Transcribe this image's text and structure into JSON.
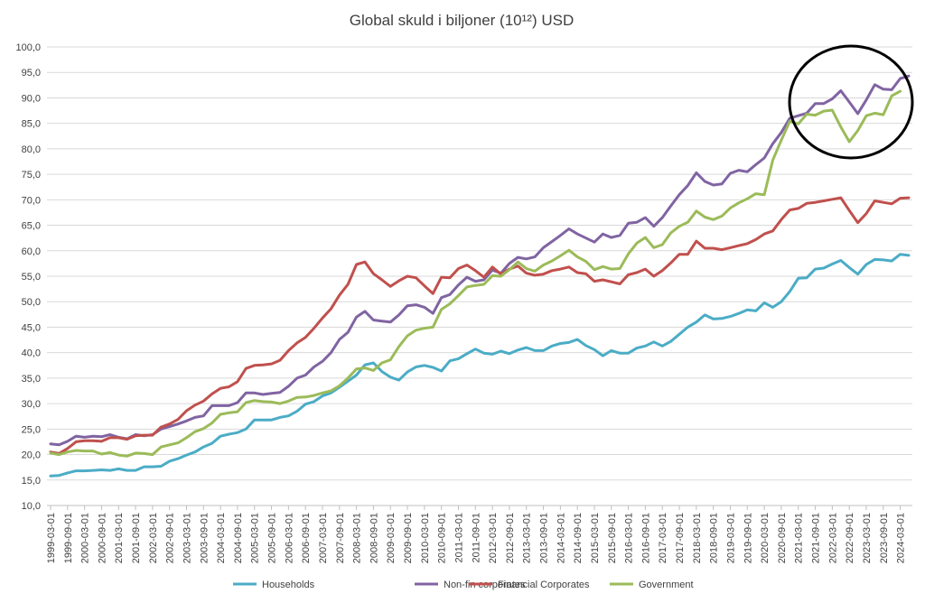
{
  "chart_data": {
    "type": "line",
    "title": "Global skuld i biljoner (10¹²) USD",
    "xlabel": "",
    "ylabel": "",
    "ylim": [
      10,
      100
    ],
    "y_ticks": [
      "10,0",
      "15,0",
      "20,0",
      "25,0",
      "30,0",
      "35,0",
      "40,0",
      "45,0",
      "50,0",
      "55,0",
      "60,0",
      "65,0",
      "70,0",
      "75,0",
      "80,0",
      "85,0",
      "90,0",
      "95,0",
      "100,0"
    ],
    "grid": true,
    "legend": "bottom",
    "x_start": "1999-03",
    "x_step_months": 3,
    "x_tick_labels": [
      "1999-03-01",
      "1999-09-01",
      "2000-03-01",
      "2000-09-01",
      "2001-03-01",
      "2001-09-01",
      "2002-03-01",
      "2002-09-01",
      "2003-03-01",
      "2003-09-01",
      "2004-03-01",
      "2004-09-01",
      "2005-03-01",
      "2005-09-01",
      "2006-03-01",
      "2006-09-01",
      "2007-03-01",
      "2007-09-01",
      "2008-03-01",
      "2008-09-01",
      "2009-03-01",
      "2009-09-01",
      "2010-03-01",
      "2010-09-01",
      "2011-03-01",
      "2011-09-01",
      "2012-03-01",
      "2012-09-01",
      "2013-03-01",
      "2013-09-01",
      "2014-03-01",
      "2014-09-01",
      "2015-03-01",
      "2015-09-01",
      "2016-03-01",
      "2016-09-01",
      "2017-03-01",
      "2017-09-01",
      "2018-03-01",
      "2018-09-01",
      "2019-03-01",
      "2019-09-01",
      "2020-03-01",
      "2020-09-01",
      "2021-03-01",
      "2021-09-01",
      "2022-03-01",
      "2022-09-01",
      "2023-03-01",
      "2023-09-01",
      "2024-03-01"
    ],
    "series": [
      {
        "name": "Households",
        "color": "#4bacc6",
        "values": [
          15.8,
          15.9,
          16.4,
          16.8,
          16.8,
          16.9,
          17.0,
          16.9,
          17.2,
          16.9,
          16.9,
          17.6,
          17.6,
          17.7,
          18.7,
          19.2,
          19.9,
          20.5,
          21.5,
          22.2,
          23.6,
          24.0,
          24.3,
          25.0,
          26.8,
          26.8,
          26.8,
          27.3,
          27.6,
          28.5,
          29.9,
          30.4,
          31.5,
          32.1,
          33.2,
          34.4,
          35.6,
          37.6,
          38.0,
          36.3,
          35.2,
          34.6,
          36.2,
          37.2,
          37.5,
          37.1,
          36.4,
          38.4,
          38.8,
          39.8,
          40.7,
          39.9,
          39.7,
          40.3,
          39.8,
          40.5,
          41.0,
          40.4,
          40.4,
          41.3,
          41.8,
          42.0,
          42.6,
          41.4,
          40.6,
          39.4,
          40.4,
          39.9,
          39.9,
          40.9,
          41.3,
          42.1,
          41.3,
          42.2,
          43.6,
          45.0,
          46.0,
          47.4,
          46.6,
          46.7,
          47.1,
          47.7,
          48.4,
          48.2,
          49.8,
          48.9,
          50.0,
          52.0,
          54.6,
          54.7,
          56.4,
          56.6,
          57.4,
          58.1,
          56.7,
          55.4,
          57.3,
          58.3,
          58.2,
          58.0,
          59.3,
          59.1
        ]
      },
      {
        "name": "Non-fin corporates",
        "color": "#8064a2",
        "values": [
          22.1,
          21.9,
          22.6,
          23.6,
          23.4,
          23.6,
          23.5,
          23.9,
          23.4,
          23.1,
          23.9,
          23.7,
          23.9,
          25.0,
          25.5,
          26.0,
          26.6,
          27.3,
          27.6,
          29.6,
          29.6,
          29.6,
          30.2,
          32.1,
          32.1,
          31.8,
          32.0,
          32.2,
          33.4,
          35.0,
          35.6,
          37.2,
          38.3,
          40.0,
          42.6,
          44.0,
          47.0,
          48.1,
          46.4,
          46.2,
          46.0,
          47.4,
          49.2,
          49.4,
          48.9,
          47.7,
          50.8,
          51.4,
          53.3,
          54.8,
          54.0,
          54.3,
          56.2,
          55.6,
          57.5,
          58.7,
          58.4,
          58.8,
          60.6,
          61.8,
          63.0,
          64.3,
          63.3,
          62.5,
          61.7,
          63.3,
          62.6,
          63.0,
          65.4,
          65.6,
          66.5,
          64.8,
          66.5,
          68.8,
          71.0,
          72.8,
          75.3,
          73.6,
          72.9,
          73.1,
          75.2,
          75.8,
          75.5,
          76.9,
          78.2,
          81.0,
          83.2,
          86.0,
          86.5,
          87.0,
          88.9,
          88.9,
          89.8,
          91.4,
          89.2,
          86.9,
          89.6,
          92.6,
          91.7,
          91.6,
          93.8,
          94.3
        ]
      },
      {
        "name": "Financial Corporates",
        "color": "#c0504d",
        "values": [
          20.5,
          20.2,
          21.2,
          22.5,
          22.7,
          22.7,
          22.6,
          23.3,
          23.3,
          23.0,
          23.7,
          23.8,
          23.8,
          25.4,
          26.0,
          26.9,
          28.6,
          29.7,
          30.5,
          31.9,
          33.0,
          33.3,
          34.3,
          36.9,
          37.5,
          37.6,
          37.8,
          38.5,
          40.4,
          41.9,
          43.0,
          44.8,
          46.8,
          48.6,
          51.3,
          53.4,
          57.3,
          57.8,
          55.5,
          54.3,
          53.0,
          54.1,
          55.0,
          54.7,
          53.1,
          51.6,
          54.8,
          54.7,
          56.5,
          57.2,
          56.1,
          54.8,
          56.8,
          55.4,
          56.4,
          57.0,
          55.6,
          55.2,
          55.4,
          56.1,
          56.4,
          56.8,
          55.7,
          55.5,
          54.0,
          54.3,
          53.9,
          53.5,
          55.3,
          55.7,
          56.4,
          55.0,
          56.1,
          57.6,
          59.3,
          59.3,
          61.9,
          60.5,
          60.5,
          60.2,
          60.6,
          61.0,
          61.4,
          62.2,
          63.3,
          63.9,
          66.1,
          68.0,
          68.3,
          69.3,
          69.5,
          69.8,
          70.1,
          70.4,
          67.9,
          65.5,
          67.3,
          69.8,
          69.5,
          69.2,
          70.3,
          70.4
        ]
      },
      {
        "name": "Government",
        "color": "#9bbb59",
        "values": [
          20.3,
          20.0,
          20.5,
          20.8,
          20.7,
          20.7,
          20.1,
          20.4,
          19.9,
          19.7,
          20.3,
          20.2,
          20.0,
          21.5,
          21.9,
          22.3,
          23.3,
          24.5,
          25.1,
          26.2,
          27.9,
          28.2,
          28.4,
          30.2,
          30.6,
          30.4,
          30.3,
          30.0,
          30.5,
          31.2,
          31.3,
          31.6,
          32.1,
          32.5,
          33.5,
          35.0,
          36.8,
          37.0,
          36.5,
          38.0,
          38.6,
          41.2,
          43.3,
          44.4,
          44.8,
          45.0,
          48.5,
          49.6,
          51.2,
          52.9,
          53.2,
          53.4,
          55.1,
          55.0,
          56.3,
          57.8,
          56.5,
          56.0,
          57.2,
          58.0,
          59.0,
          60.1,
          58.8,
          57.9,
          56.3,
          56.9,
          56.4,
          56.5,
          59.4,
          61.5,
          62.6,
          60.6,
          61.2,
          63.5,
          64.8,
          65.6,
          67.8,
          66.6,
          66.1,
          66.8,
          68.4,
          69.4,
          70.2,
          71.2,
          71.0,
          77.8,
          81.7,
          85.4,
          84.9,
          86.8,
          86.6,
          87.4,
          87.6,
          84.3,
          81.4,
          83.6,
          86.5,
          87.0,
          86.7,
          90.4,
          91.3
        ]
      }
    ]
  }
}
